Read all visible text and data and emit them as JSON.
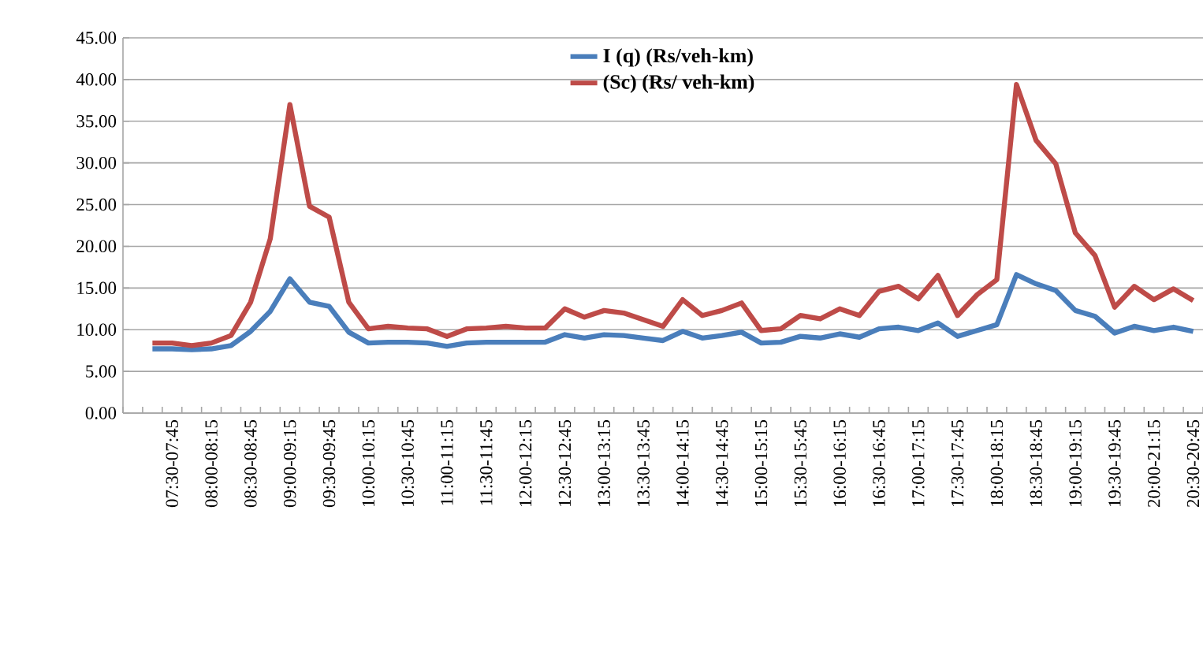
{
  "chart_data": {
    "type": "line",
    "categories": [
      null,
      null,
      "07:30-07:45",
      null,
      "08:00-08:15",
      null,
      "08:30-08:45",
      null,
      "09:00-09:15",
      null,
      "09:30-09:45",
      null,
      "10:00-10:15",
      null,
      "10:30-10:45",
      null,
      "11:00-11:15",
      null,
      "11:30-11:45",
      null,
      "12:00-12:15",
      null,
      "12:30-12:45",
      null,
      "13:00-13:15",
      null,
      "13:30-13:45",
      null,
      "14:00-14:15",
      null,
      "14:30-14:45",
      null,
      "15:00-15:15",
      null,
      "15:30-15:45",
      null,
      "16:00-16:15",
      null,
      "16:30-16:45",
      null,
      "17:00-17:15",
      null,
      "17:30-17:45",
      null,
      "18:00-18:15",
      null,
      "18:30-18:45",
      null,
      "19:00-19:15",
      null,
      "19:30-19:45",
      null,
      "20:00-21:15",
      null,
      "20:30-20:45"
    ],
    "series": [
      {
        "name": "I (q) (Rs/veh-km)",
        "color": "#4a7ebb",
        "values": [
          null,
          7.7,
          7.7,
          7.6,
          7.7,
          8.1,
          9.8,
          12.2,
          16.1,
          13.3,
          12.8,
          9.7,
          8.4,
          8.5,
          8.5,
          8.4,
          8.0,
          8.4,
          8.5,
          8.5,
          8.5,
          8.5,
          9.4,
          9.0,
          9.4,
          9.3,
          9.0,
          8.7,
          9.8,
          9.0,
          9.3,
          9.7,
          8.4,
          8.5,
          9.2,
          9.0,
          9.5,
          9.1,
          10.1,
          10.3,
          9.9,
          10.8,
          9.2,
          9.9,
          10.6,
          16.6,
          15.5,
          14.7,
          12.3,
          11.6,
          9.6,
          10.4,
          9.9,
          10.3,
          9.8
        ]
      },
      {
        "name": "(Sc) (Rs/ veh-km)",
        "color": "#be4b48",
        "values": [
          null,
          8.4,
          8.4,
          8.1,
          8.4,
          9.3,
          13.3,
          20.9,
          37.0,
          24.8,
          23.5,
          13.3,
          10.1,
          10.4,
          10.2,
          10.1,
          9.2,
          10.1,
          10.2,
          10.4,
          10.2,
          10.2,
          12.5,
          11.5,
          12.3,
          12.0,
          11.2,
          10.4,
          13.6,
          11.7,
          12.3,
          13.2,
          9.9,
          10.1,
          11.7,
          11.3,
          12.5,
          11.7,
          14.6,
          15.2,
          13.7,
          16.5,
          11.7,
          14.2,
          16.0,
          39.4,
          32.7,
          29.9,
          21.6,
          18.9,
          12.7,
          15.2,
          13.6,
          14.9,
          13.5
        ]
      }
    ],
    "ylim": [
      0,
      45
    ],
    "yticks": [
      {
        "value": 0,
        "label": "0.00"
      },
      {
        "value": 5,
        "label": "5.00"
      },
      {
        "value": 10,
        "label": "10.00"
      },
      {
        "value": 15,
        "label": "15.00"
      },
      {
        "value": 20,
        "label": "20.00"
      },
      {
        "value": 25,
        "label": "25.00"
      },
      {
        "value": 30,
        "label": "30.00"
      },
      {
        "value": 35,
        "label": "35.00"
      },
      {
        "value": 40,
        "label": "40.00"
      },
      {
        "value": 45,
        "label": "45.00"
      }
    ],
    "grid": "y",
    "legend": "top",
    "marker": "none",
    "line_style": "solid"
  }
}
